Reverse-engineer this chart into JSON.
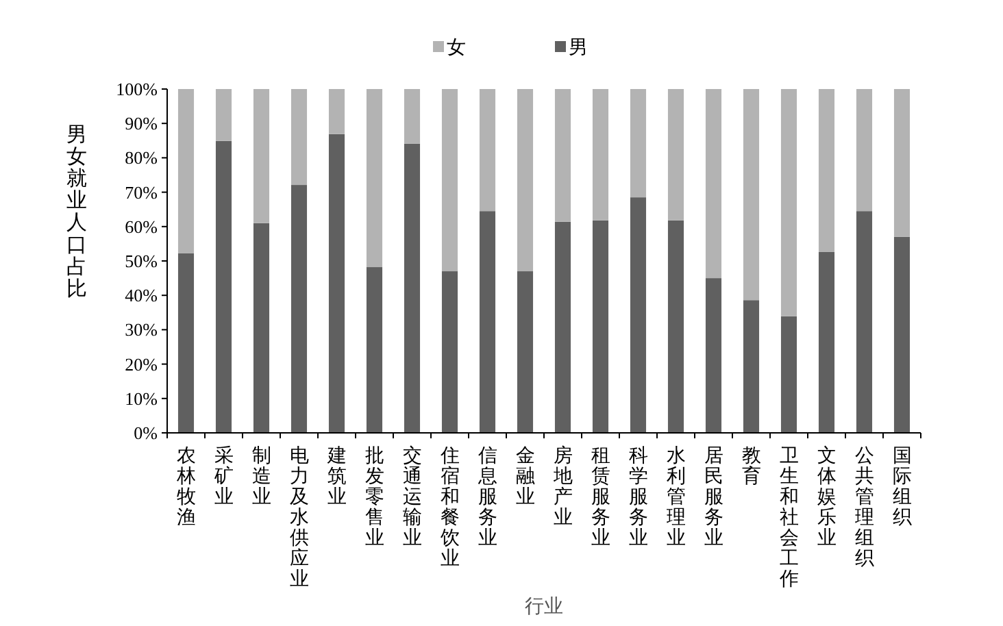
{
  "chart_data": {
    "type": "bar",
    "stacked": true,
    "xlabel": "行业",
    "ylabel": "男女就业人口占比",
    "categories": [
      "农林牧渔",
      "采矿业",
      "制造业",
      "电力及水供应业",
      "建筑业",
      "批发零售业",
      "交通运输业",
      "住宿和餐饮业",
      "信息服务业",
      "金融业",
      "房地产业",
      "租赁服务业",
      "科学服务业",
      "水利管理业",
      "居民服务业",
      "教育",
      "卫生和社会工作",
      "文体娱乐业",
      "公共管理组织",
      "国际组织"
    ],
    "series": [
      {
        "name": "男",
        "color": "#606060",
        "values": [
          52.2,
          84.9,
          61.0,
          72.1,
          86.9,
          48.2,
          84.1,
          47.0,
          64.5,
          47.0,
          61.4,
          61.8,
          68.5,
          61.8,
          45.0,
          38.6,
          33.9,
          52.6,
          64.5,
          57.0
        ]
      },
      {
        "name": "女",
        "color": "#b3b3b3",
        "values": [
          47.8,
          15.1,
          39.0,
          27.9,
          13.1,
          51.8,
          15.9,
          53.0,
          35.5,
          53.0,
          38.6,
          38.2,
          31.5,
          38.2,
          55.0,
          61.4,
          66.1,
          47.4,
          35.5,
          43.0
        ]
      }
    ],
    "ylim": [
      0,
      100
    ],
    "yticks": [
      {
        "value": 0,
        "label": "0%"
      },
      {
        "value": 10,
        "label": "10%"
      },
      {
        "value": 20,
        "label": "20%"
      },
      {
        "value": 30,
        "label": "30%"
      },
      {
        "value": 40,
        "label": "40%"
      },
      {
        "value": 50,
        "label": "50%"
      },
      {
        "value": 60,
        "label": "60%"
      },
      {
        "value": 70,
        "label": "70%"
      },
      {
        "value": 80,
        "label": "80%"
      },
      {
        "value": 90,
        "label": "90%"
      },
      {
        "value": 100,
        "label": "100%"
      }
    ],
    "legend": "top",
    "grid": false
  }
}
